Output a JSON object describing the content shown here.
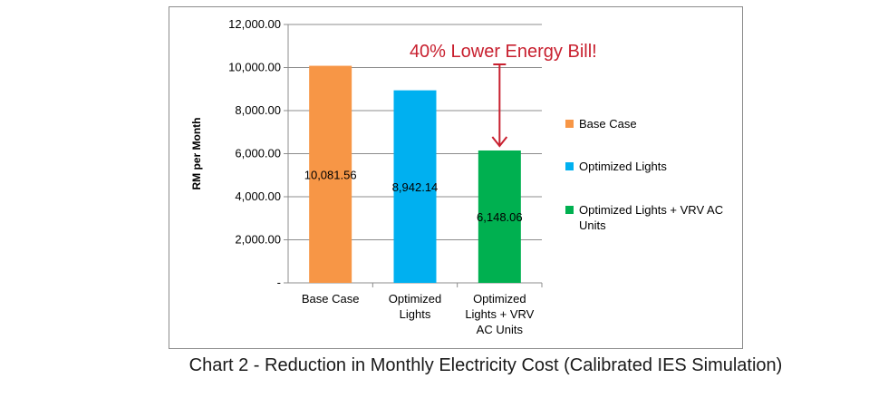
{
  "chart_data": {
    "type": "bar",
    "categories": [
      "Base Case",
      "Optimized Lights",
      "Optimized Lights + VRV AC Units"
    ],
    "category_tick_lines": [
      [
        "Base Case"
      ],
      [
        "Optimized",
        "Lights"
      ],
      [
        "Optimized",
        "Lights + VRV",
        "AC Units"
      ]
    ],
    "values": [
      10081.56,
      8942.14,
      6148.06
    ],
    "data_labels": [
      "10,081.56",
      "8,942.14",
      "6,148.06"
    ],
    "colors": [
      "#f79646",
      "#00b0f0",
      "#00b050"
    ],
    "ylabel": "RM per Month",
    "ylim": [
      0,
      12000
    ],
    "yticks": [
      0,
      2000,
      4000,
      6000,
      8000,
      10000,
      12000
    ],
    "ytick_labels": [
      "-",
      "2,000.00",
      "4,000.00",
      "6,000.00",
      "8,000.00",
      "10,000.00",
      "12,000.00"
    ],
    "grid": true,
    "legend_position": "right",
    "legend": [
      {
        "label_lines": [
          "Base Case"
        ],
        "color": "#f79646"
      },
      {
        "label_lines": [
          "Optimized Lights"
        ],
        "color": "#00b0f0"
      },
      {
        "label_lines": [
          "Optimized Lights + VRV  AC",
          "Units"
        ],
        "color": "#00b050"
      }
    ],
    "annotation": {
      "text": "40% Lower Energy Bill!",
      "color": "#c8202f",
      "arrow_to_category": 2
    }
  },
  "caption": "Chart 2 - Reduction in Monthly Electricity Cost (Calibrated IES Simulation)"
}
